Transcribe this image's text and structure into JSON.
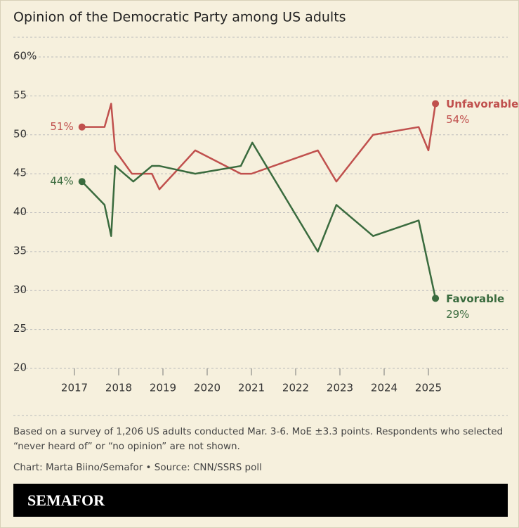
{
  "chart_data": {
    "type": "line",
    "title": "Opinion of the Democratic Party among US adults",
    "xlim": [
      2016.5,
      2025.5
    ],
    "xticks": [
      2017,
      2018,
      2019,
      2020,
      2021,
      2022,
      2023,
      2024,
      2025
    ],
    "ylim": [
      20,
      60
    ],
    "yticks": [
      20,
      25,
      30,
      35,
      40,
      45,
      50,
      55,
      {
        "value": 60,
        "label": "60%"
      }
    ],
    "grid": true,
    "series": [
      {
        "name": "Unfavorable",
        "color": "#c0504d",
        "x": [
          2017.17,
          2017.68,
          2017.83,
          2017.92,
          2018.3,
          2018.75,
          2018.92,
          2019.73,
          2020.76,
          2021.0,
          2022.5,
          2022.92,
          2023.75,
          2024.78,
          2025.0,
          2025.16
        ],
        "values": [
          51,
          51,
          54,
          48,
          45,
          45,
          43,
          48,
          45,
          45,
          48,
          44,
          50,
          51,
          48,
          54
        ],
        "value_labels": [
          "51%",
          null,
          null,
          null,
          null,
          null,
          null,
          null,
          null,
          null,
          null,
          null,
          null,
          null,
          null,
          "54%"
        ]
      },
      {
        "name": "Favorable",
        "color": "#3a6b3e",
        "x": [
          2017.17,
          2017.68,
          2017.83,
          2017.92,
          2018.33,
          2018.75,
          2018.92,
          2019.73,
          2020.76,
          2021.02,
          2022.5,
          2022.92,
          2023.75,
          2024.78,
          2025.16
        ],
        "values": [
          44,
          41,
          37,
          46,
          44,
          46,
          46,
          45,
          46,
          49,
          35,
          41,
          37,
          39,
          29
        ],
        "value_labels": [
          "44%",
          null,
          null,
          null,
          null,
          null,
          null,
          null,
          null,
          null,
          null,
          null,
          null,
          null,
          "29%"
        ]
      }
    ],
    "note": "Based on a survey of 1,206 US adults conducted Mar. 3-6. MoE ±3.3 points. Respondents who selected “never heard of” or “no opinion” are not shown.",
    "source": "Chart: Marta Biino/Semafor • Source: CNN/SSRS poll",
    "brand": "SEMAFOR"
  }
}
